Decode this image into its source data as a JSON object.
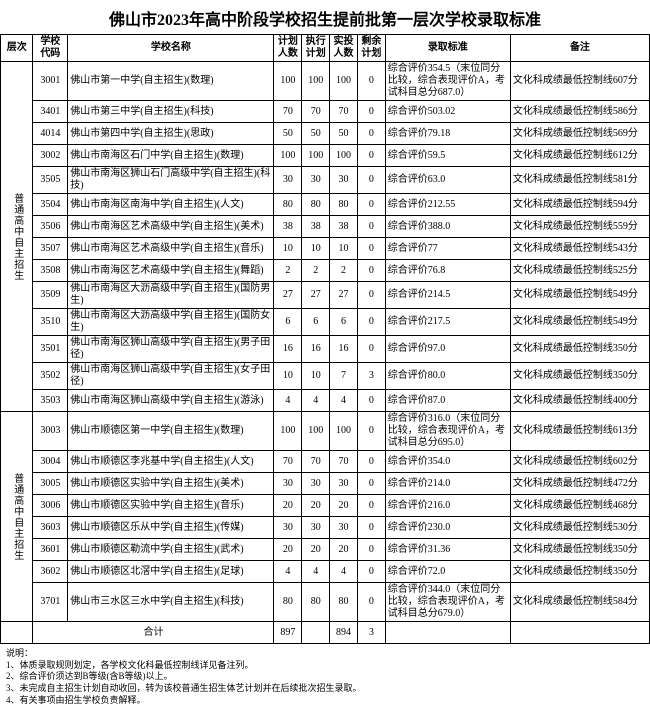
{
  "title": "佛山市2023年高中阶段学校招生提前批第一层次学校录取标准",
  "columns": [
    "层次",
    "学校代码",
    "学校名称",
    "计划人数",
    "执行计划",
    "实投人数",
    "剩余计划",
    "录取标准",
    "备注"
  ],
  "groups": [
    {
      "level": "普通高中自主招生",
      "rows": [
        {
          "code": "3001",
          "name": "佛山市第一中学(自主招生)(数理)",
          "plan": "100",
          "exec": "100",
          "actual": "100",
          "remain": "0",
          "std": "综合评价354.5（末位同分比较，综合表现评价A，考试科目总分687.0）",
          "remark": "文化科成绩最低控制线607分"
        },
        {
          "code": "3401",
          "name": "佛山市第三中学(自主招生)(科技)",
          "plan": "70",
          "exec": "70",
          "actual": "70",
          "remain": "0",
          "std": "综合评价503.02",
          "remark": "文化科成绩最低控制线586分"
        },
        {
          "code": "4014",
          "name": "佛山市第四中学(自主招生)(思政)",
          "plan": "50",
          "exec": "50",
          "actual": "50",
          "remain": "0",
          "std": "综合评价79.18",
          "remark": "文化科成绩最低控制线569分"
        },
        {
          "code": "3002",
          "name": "佛山市南海区石门中学(自主招生)(数理)",
          "plan": "100",
          "exec": "100",
          "actual": "100",
          "remain": "0",
          "std": "综合评价59.5",
          "remark": "文化科成绩最低控制线612分"
        },
        {
          "code": "3505",
          "name": "佛山市南海区狮山石门高级中学(自主招生)(科技)",
          "plan": "30",
          "exec": "30",
          "actual": "30",
          "remain": "0",
          "std": "综合评价63.0",
          "remark": "文化科成绩最低控制线581分"
        },
        {
          "code": "3504",
          "name": "佛山市南海区南海中学(自主招生)(人文)",
          "plan": "80",
          "exec": "80",
          "actual": "80",
          "remain": "0",
          "std": "综合评价212.55",
          "remark": "文化科成绩最低控制线594分"
        },
        {
          "code": "3506",
          "name": "佛山市南海区艺术高级中学(自主招生)(美术)",
          "plan": "38",
          "exec": "38",
          "actual": "38",
          "remain": "0",
          "std": "综合评价388.0",
          "remark": "文化科成绩最低控制线559分"
        },
        {
          "code": "3507",
          "name": "佛山市南海区艺术高级中学(自主招生)(音乐)",
          "plan": "10",
          "exec": "10",
          "actual": "10",
          "remain": "0",
          "std": "综合评价77",
          "remark": "文化科成绩最低控制线543分"
        },
        {
          "code": "3508",
          "name": "佛山市南海区艺术高级中学(自主招生)(舞蹈)",
          "plan": "2",
          "exec": "2",
          "actual": "2",
          "remain": "0",
          "std": "综合评价76.8",
          "remark": "文化科成绩最低控制线525分"
        },
        {
          "code": "3509",
          "name": "佛山市南海区大沥高级中学(自主招生)(国防男生)",
          "plan": "27",
          "exec": "27",
          "actual": "27",
          "remain": "0",
          "std": "综合评价214.5",
          "remark": "文化科成绩最低控制线549分"
        },
        {
          "code": "3510",
          "name": "佛山市南海区大沥高级中学(自主招生)(国防女生)",
          "plan": "6",
          "exec": "6",
          "actual": "6",
          "remain": "0",
          "std": "综合评价217.5",
          "remark": "文化科成绩最低控制线549分"
        },
        {
          "code": "3501",
          "name": "佛山市南海区狮山高级中学(自主招生)(男子田径)",
          "plan": "16",
          "exec": "16",
          "actual": "16",
          "remain": "0",
          "std": "综合评价97.0",
          "remark": "文化科成绩最低控制线350分"
        },
        {
          "code": "3502",
          "name": "佛山市南海区狮山高级中学(自主招生)(女子田径)",
          "plan": "10",
          "exec": "10",
          "actual": "7",
          "remain": "3",
          "std": "综合评价80.0",
          "remark": "文化科成绩最低控制线350分"
        },
        {
          "code": "3503",
          "name": "佛山市南海区狮山高级中学(自主招生)(游泳)",
          "plan": "4",
          "exec": "4",
          "actual": "4",
          "remain": "0",
          "std": "综合评价87.0",
          "remark": "文化科成绩最低控制线400分"
        }
      ]
    },
    {
      "level": "普通高中自主招生",
      "rows": [
        {
          "code": "3003",
          "name": "佛山市顺德区第一中学(自主招生)(数理)",
          "plan": "100",
          "exec": "100",
          "actual": "100",
          "remain": "0",
          "std": "综合评价316.0（末位同分比较，综合表现评价A，考试科目总分695.0）",
          "remark": "文化科成绩最低控制线613分"
        },
        {
          "code": "3004",
          "name": "佛山市顺德区李兆基中学(自主招生)(人文)",
          "plan": "70",
          "exec": "70",
          "actual": "70",
          "remain": "0",
          "std": "综合评价354.0",
          "remark": "文化科成绩最低控制线602分"
        },
        {
          "code": "3005",
          "name": "佛山市顺德区实验中学(自主招生)(美术)",
          "plan": "30",
          "exec": "30",
          "actual": "30",
          "remain": "0",
          "std": "综合评价214.0",
          "remark": "文化科成绩最低控制线472分"
        },
        {
          "code": "3006",
          "name": "佛山市顺德区实验中学(自主招生)(音乐)",
          "plan": "20",
          "exec": "20",
          "actual": "20",
          "remain": "0",
          "std": "综合评价216.0",
          "remark": "文化科成绩最低控制线468分"
        },
        {
          "code": "3603",
          "name": "佛山市顺德区乐从中学(自主招生)(传媒)",
          "plan": "30",
          "exec": "30",
          "actual": "30",
          "remain": "0",
          "std": "综合评价230.0",
          "remark": "文化科成绩最低控制线530分"
        },
        {
          "code": "3601",
          "name": "佛山市顺德区勒流中学(自主招生)(武术)",
          "plan": "20",
          "exec": "20",
          "actual": "20",
          "remain": "0",
          "std": "综合评价31.36",
          "remark": "文化科成绩最低控制线350分"
        },
        {
          "code": "3602",
          "name": "佛山市顺德区北滘中学(自主招生)(足球)",
          "plan": "4",
          "exec": "4",
          "actual": "4",
          "remain": "0",
          "std": "综合评价72.0",
          "remark": "文化科成绩最低控制线350分"
        },
        {
          "code": "3701",
          "name": "佛山市三水区三水中学(自主招生)(科技)",
          "plan": "80",
          "exec": "80",
          "actual": "80",
          "remain": "0",
          "std": "综合评价344.0（末位同分比较，综合表现评价A，考试科目总分679.0）",
          "remark": "文化科成绩最低控制线584分"
        }
      ]
    }
  ],
  "total": {
    "label": "合计",
    "plan": "897",
    "exec": "",
    "actual": "894",
    "remain": "3",
    "std": "",
    "remark": ""
  },
  "notes_title": "说明：",
  "notes": [
    "1、体质录取规则划定，各学校文化科最低控制线详见备注列。",
    "2、综合评价须达到B等级(含B等级)以上。",
    "3、未完成自主招生计划自动收回，转为该校普通生招生体艺计划并在后续批次招生录取。",
    "4、有关事项由招生学校负责解释。"
  ]
}
